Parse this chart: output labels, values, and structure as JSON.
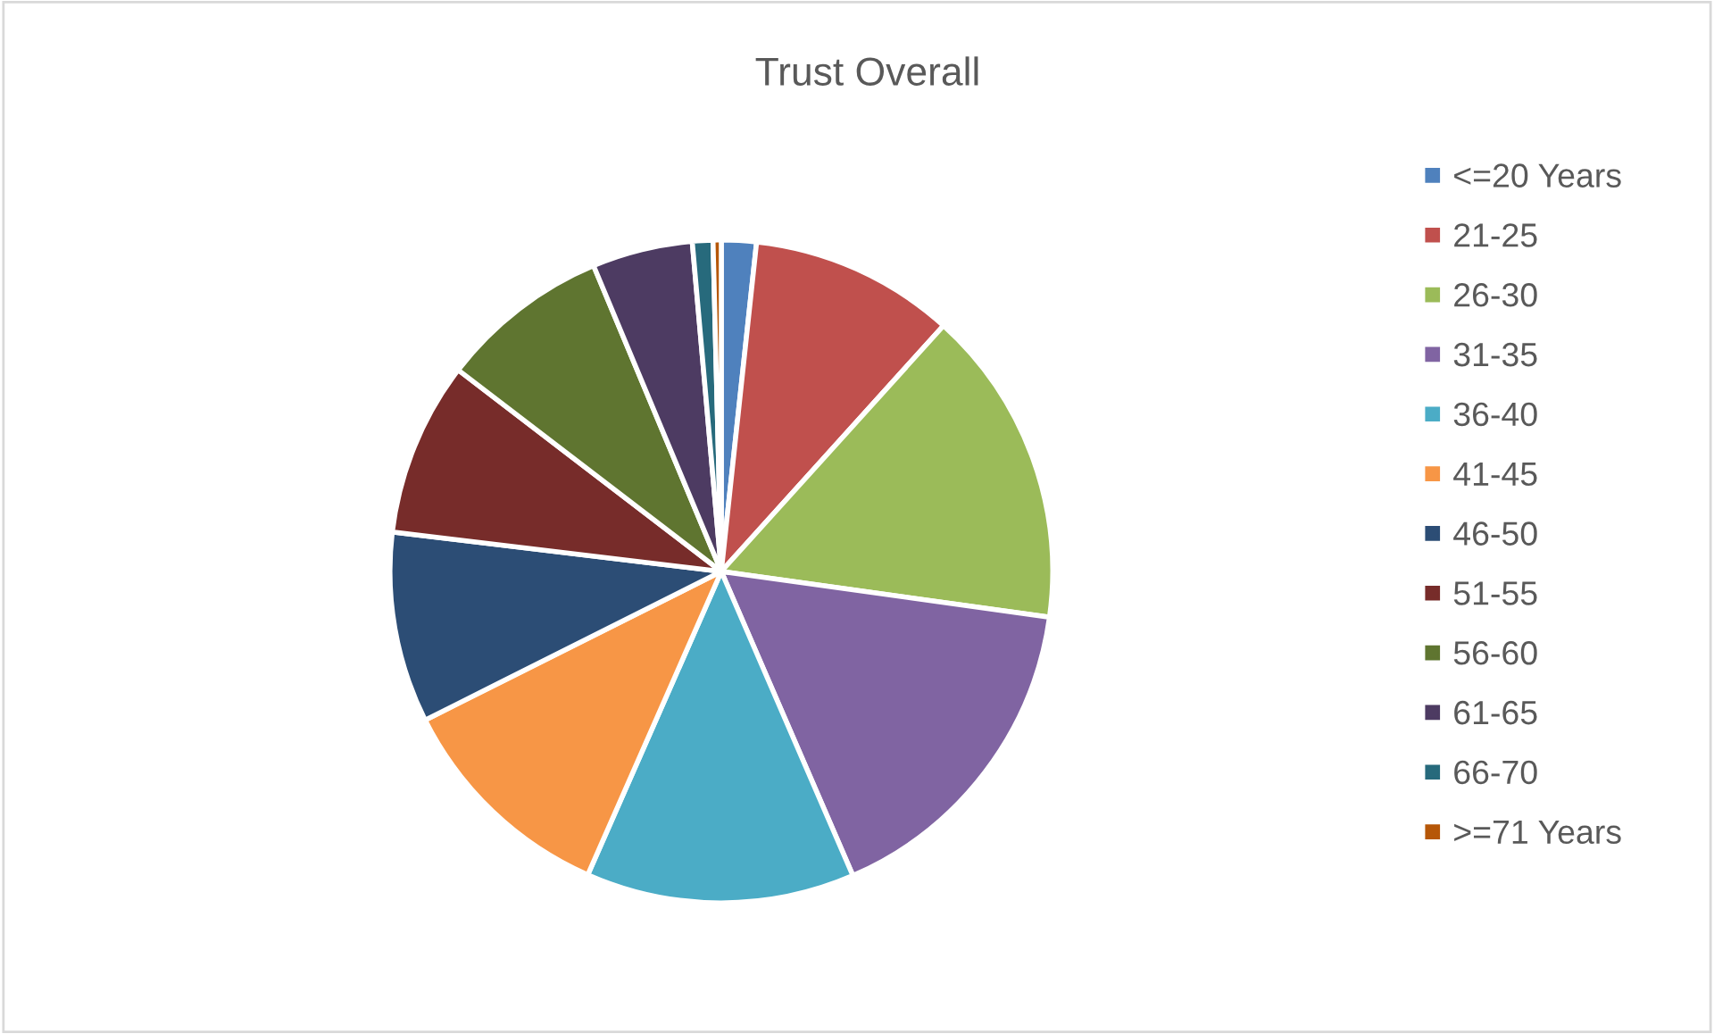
{
  "chart_data": {
    "type": "pie",
    "title": "Trust Overall",
    "categories": [
      "<=20 Years",
      "21-25",
      "26-30",
      "31-35",
      "36-40",
      "41-45",
      "46-50",
      "51-55",
      "56-60",
      "61-65",
      "66-70",
      ">=71 Years"
    ],
    "values": [
      1.7,
      10.0,
      15.5,
      16.3,
      13.1,
      11.0,
      9.3,
      8.5,
      8.3,
      4.9,
      1.0,
      0.4
    ],
    "colors": [
      "#4f81bd",
      "#c0504d",
      "#9bbb59",
      "#8064a2",
      "#4bacc6",
      "#f79646",
      "#2c4d75",
      "#772c2a",
      "#5f7530",
      "#4d3b62",
      "#276a7c",
      "#b65708"
    ],
    "legend": "right"
  }
}
